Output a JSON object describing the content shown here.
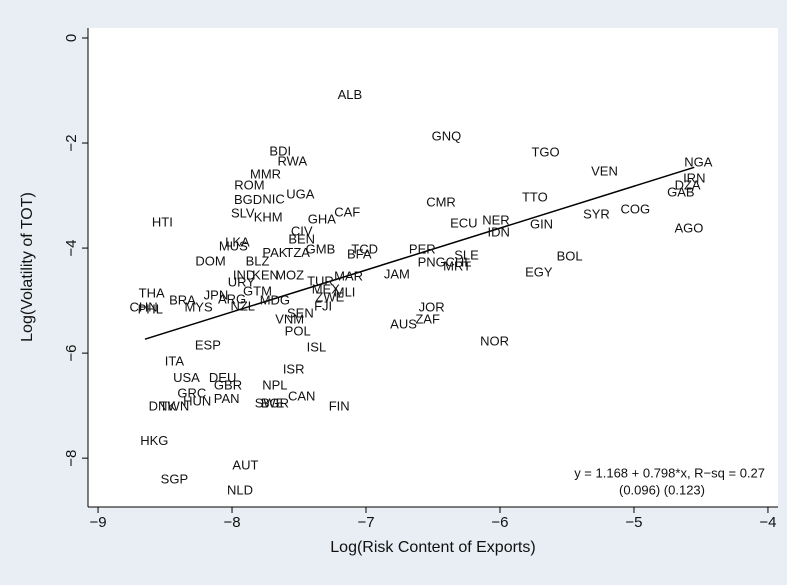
{
  "chart_data": {
    "type": "scatter",
    "xlabel": "Log(Risk Content of Exports)",
    "ylabel": "Log(Volatility of TOT)",
    "xlim": [
      -9.075,
      -3.925
    ],
    "ylim": [
      -8.93,
      0.19
    ],
    "xticks": [
      {
        "value": -9,
        "label": "−9"
      },
      {
        "value": -8,
        "label": "−8"
      },
      {
        "value": -7,
        "label": "−7"
      },
      {
        "value": -6,
        "label": "−6"
      },
      {
        "value": -5,
        "label": "−5"
      },
      {
        "value": -4,
        "label": "−4"
      }
    ],
    "yticks": [
      0,
      {
        "value": -2,
        "label": "−2"
      },
      {
        "value": -4,
        "label": "−4"
      },
      {
        "value": -6,
        "label": "−6"
      },
      {
        "value": -8,
        "label": "−8"
      }
    ],
    "labels": [
      "ALB",
      "GNQ",
      "TGO",
      "VEN",
      "NGA",
      "IRN",
      "DZA",
      "GAB",
      "TTO",
      "COG",
      "SYR",
      "AGO",
      "CMR",
      "ECU",
      "NER",
      "GIN",
      "IDN",
      "BOL",
      "EGY",
      "PER",
      "SLE",
      "PNG",
      "CHL",
      "MRT",
      "JAM",
      "JOR",
      "ZAF",
      "AUS",
      "NOR",
      "BDI",
      "RWA",
      "MMR",
      "ROM",
      "UGA",
      "BGD",
      "NIC",
      "SLV",
      "KHM",
      "GHA",
      "CAF",
      "HTI",
      "CIV",
      "BEN",
      "LKA",
      "MUS",
      "PAK",
      "TZA",
      "GMB",
      "TCD",
      "BFA",
      "DOM",
      "BLZ",
      "IND",
      "KEN",
      "MOZ",
      "MAR",
      "URY",
      "TUR",
      "GTM",
      "MEX",
      "MLI",
      "ZWE",
      "THA",
      "CHN",
      "PHL",
      "BRA",
      "MYS",
      "JPN",
      "ARG",
      "NZL",
      "MDG",
      "FJI",
      "SEN",
      "VNM",
      "POL",
      "ISL",
      "ESP",
      "ITA",
      "USA",
      "DEU",
      "GBR",
      "GRC",
      "PAN",
      "HUN",
      "DNK",
      "TWN",
      "ISR",
      "NPL",
      "CAN",
      "SWE",
      "BGR",
      "FIN",
      "HKG",
      "AUT",
      "SGP",
      "NLD"
    ],
    "x": [
      -7.12,
      -6.4,
      -5.66,
      -5.22,
      -4.52,
      -4.55,
      -4.6,
      -4.65,
      -5.74,
      -4.99,
      -5.28,
      -4.59,
      -6.44,
      -6.27,
      -6.03,
      -5.69,
      -6.01,
      -5.48,
      -5.71,
      -6.58,
      -6.25,
      -6.51,
      -6.31,
      -6.32,
      -6.77,
      -6.51,
      -6.54,
      -6.72,
      -6.04,
      -7.64,
      -7.55,
      -7.75,
      -7.87,
      -7.49,
      -7.88,
      -7.69,
      -7.92,
      -7.73,
      -7.33,
      -7.14,
      -8.52,
      -7.48,
      -7.48,
      -7.96,
      -7.99,
      -7.68,
      -7.51,
      -7.34,
      -7.01,
      -7.05,
      -8.16,
      -7.81,
      -7.91,
      -7.75,
      -7.57,
      -7.13,
      -7.93,
      -7.34,
      -7.81,
      -7.3,
      -7.16,
      -7.27,
      -8.6,
      -8.66,
      -8.61,
      -8.37,
      -8.25,
      -8.12,
      -8.0,
      -7.92,
      -7.68,
      -7.32,
      -7.49,
      -7.57,
      -7.51,
      -7.37,
      -8.18,
      -8.43,
      -8.34,
      -8.07,
      -8.03,
      -8.3,
      -8.04,
      -8.26,
      -8.52,
      -8.43,
      -7.54,
      -7.68,
      -7.48,
      -7.72,
      -7.68,
      -7.2,
      -8.58,
      -7.9,
      -8.43,
      -7.94
    ],
    "y": [
      -1.1,
      -1.89,
      -2.19,
      -2.55,
      -2.38,
      -2.69,
      -2.82,
      -2.95,
      -3.05,
      -3.28,
      -3.37,
      -3.64,
      -3.14,
      -3.54,
      -3.49,
      -3.56,
      -3.71,
      -4.17,
      -4.48,
      -4.04,
      -4.15,
      -4.29,
      -4.29,
      -4.36,
      -4.51,
      -5.14,
      -5.37,
      -5.47,
      -5.79,
      -2.17,
      -2.36,
      -2.61,
      -2.82,
      -2.99,
      -3.1,
      -3.09,
      -3.35,
      -3.43,
      -3.47,
      -3.33,
      -3.52,
      -3.7,
      -3.85,
      -3.9,
      -3.98,
      -4.1,
      -4.1,
      -4.04,
      -4.04,
      -4.13,
      -4.27,
      -4.27,
      -4.53,
      -4.53,
      -4.53,
      -4.55,
      -4.67,
      -4.65,
      -4.84,
      -4.8,
      -4.86,
      -4.95,
      -4.88,
      -5.14,
      -5.18,
      -5.01,
      -5.14,
      -4.91,
      -4.99,
      -5.12,
      -5.01,
      -5.12,
      -5.26,
      -5.37,
      -5.6,
      -5.9,
      -5.87,
      -6.17,
      -6.48,
      -6.48,
      -6.63,
      -6.78,
      -6.88,
      -6.93,
      -7.03,
      -7.03,
      -6.32,
      -6.63,
      -6.84,
      -6.97,
      -6.97,
      -7.03,
      -7.68,
      -8.15,
      -8.42,
      -8.63
    ],
    "fit_line": {
      "x": [
        -8.65,
        -4.55
      ],
      "y": [
        -5.735,
        -2.463
      ]
    },
    "annotation": [
      "y = 1.168 + 0.798*x, R−sq = 0.27",
      "(0.096)  (0.123)"
    ]
  }
}
